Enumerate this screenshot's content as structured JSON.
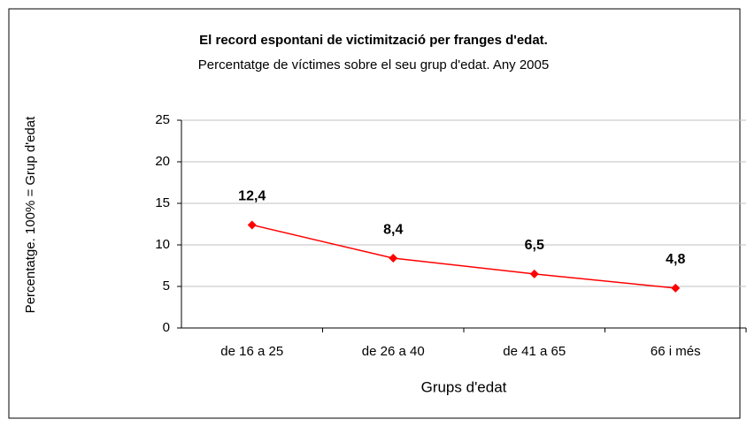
{
  "chart_data": {
    "type": "line",
    "title": "El record espontani de victimització per franges d'edat.",
    "subtitle": "Percentatge de víctimes sobre el seu grup d'edat. Any 2005",
    "x_label": "Grups d'edat",
    "y_label": "Percentatge. 100% = Grup d'edat",
    "categories": [
      "de 16 a 25",
      "de 26 a 40",
      "de 41 a 65",
      "66 i més"
    ],
    "series": [
      {
        "name": "Percentatge",
        "color": "#ff0000",
        "values": [
          12.4,
          8.4,
          6.5,
          4.8
        ],
        "value_labels": [
          "12,4",
          "8,4",
          "6,5",
          "4,8"
        ]
      }
    ],
    "ylim": [
      0,
      25
    ],
    "yticks": [
      0,
      5,
      10,
      15,
      20,
      25
    ],
    "grid": true
  }
}
